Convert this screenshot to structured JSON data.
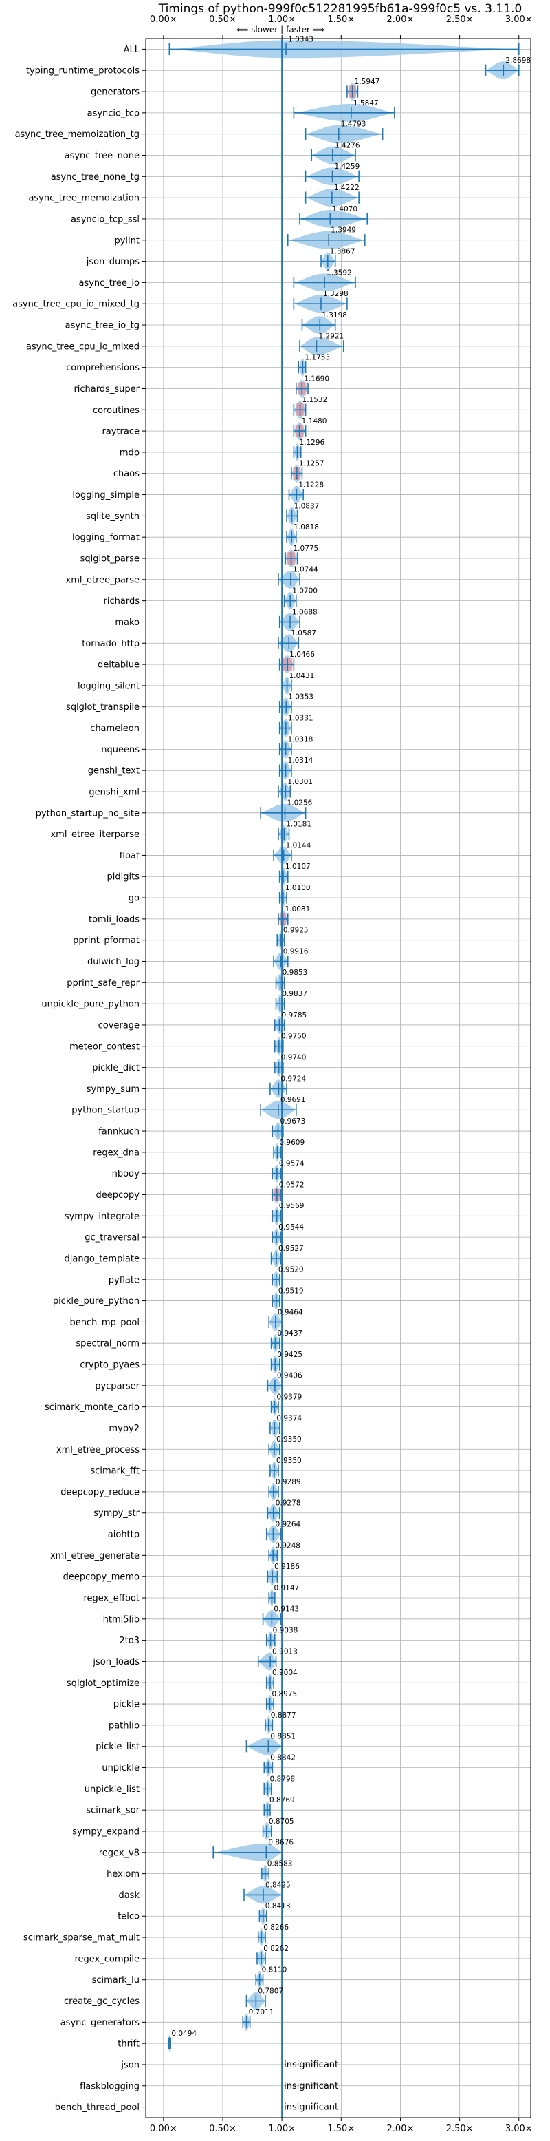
{
  "chart_data": {
    "type": "violin",
    "title": "Timings of python-999f0c512281995fb61a-999f0c5 vs. 3.11.0",
    "direction_labels": {
      "slower": "⟸ slower",
      "separator": "|",
      "faster": "faster ⟹"
    },
    "xlim": [
      -0.15,
      3.1
    ],
    "xticks": [
      0.0,
      0.5,
      1.0,
      1.5,
      2.0,
      2.5,
      3.0
    ],
    "xtick_labels": [
      "0.00×",
      "0.50×",
      "1.00×",
      "1.50×",
      "2.00×",
      "2.50×",
      "3.00×"
    ],
    "reference_line": 1.0,
    "grid": true,
    "insignificant_label": "insignificant",
    "colors": {
      "violin": "#9ec9ea",
      "median": "#1f77b4",
      "reference": "#1f77b4",
      "grid": "#b0b0b0",
      "highlight": "#f08080"
    },
    "benchmarks": [
      {
        "name": "ALL",
        "value": 1.0343,
        "label": "1.0343",
        "min": 0.0494,
        "max": 3.0
      },
      {
        "name": "typing_runtime_protocols",
        "value": 2.8698,
        "label": "2.8698",
        "min": 2.72,
        "max": 3.0
      },
      {
        "name": "generators",
        "value": 1.5947,
        "label": "1.5947",
        "min": 1.55,
        "max": 1.64,
        "highlight": true
      },
      {
        "name": "asyncio_tcp",
        "value": 1.5847,
        "label": "1.5847",
        "min": 1.1,
        "max": 1.95
      },
      {
        "name": "async_tree_memoization_tg",
        "value": 1.4793,
        "label": "1.4793",
        "min": 1.2,
        "max": 1.85
      },
      {
        "name": "async_tree_none",
        "value": 1.4276,
        "label": "1.4276",
        "min": 1.25,
        "max": 1.62
      },
      {
        "name": "async_tree_none_tg",
        "value": 1.4259,
        "label": "1.4259",
        "min": 1.2,
        "max": 1.65
      },
      {
        "name": "async_tree_memoization",
        "value": 1.4222,
        "label": "1.4222",
        "min": 1.2,
        "max": 1.65
      },
      {
        "name": "asyncio_tcp_ssl",
        "value": 1.407,
        "label": "1.4070",
        "min": 1.15,
        "max": 1.72
      },
      {
        "name": "pylint",
        "value": 1.3949,
        "label": "1.3949",
        "min": 1.05,
        "max": 1.7
      },
      {
        "name": "json_dumps",
        "value": 1.3867,
        "label": "1.3867",
        "min": 1.33,
        "max": 1.45
      },
      {
        "name": "async_tree_io",
        "value": 1.3592,
        "label": "1.3592",
        "min": 1.1,
        "max": 1.62
      },
      {
        "name": "async_tree_cpu_io_mixed_tg",
        "value": 1.3298,
        "label": "1.3298",
        "min": 1.1,
        "max": 1.55
      },
      {
        "name": "async_tree_io_tg",
        "value": 1.3198,
        "label": "1.3198",
        "min": 1.17,
        "max": 1.45
      },
      {
        "name": "async_tree_cpu_io_mixed",
        "value": 1.2921,
        "label": "1.2921",
        "min": 1.15,
        "max": 1.52
      },
      {
        "name": "comprehensions",
        "value": 1.1753,
        "label": "1.1753",
        "min": 1.14,
        "max": 1.2
      },
      {
        "name": "richards_super",
        "value": 1.169,
        "label": "1.1690",
        "min": 1.12,
        "max": 1.22,
        "highlight": true
      },
      {
        "name": "coroutines",
        "value": 1.1532,
        "label": "1.1532",
        "min": 1.1,
        "max": 1.2,
        "highlight": true
      },
      {
        "name": "raytrace",
        "value": 1.148,
        "label": "1.1480",
        "min": 1.1,
        "max": 1.2,
        "highlight": true
      },
      {
        "name": "mdp",
        "value": 1.1296,
        "label": "1.1296",
        "min": 1.1,
        "max": 1.16
      },
      {
        "name": "chaos",
        "value": 1.1257,
        "label": "1.1257",
        "min": 1.08,
        "max": 1.17,
        "highlight": true
      },
      {
        "name": "logging_simple",
        "value": 1.1228,
        "label": "1.1228",
        "min": 1.06,
        "max": 1.18
      },
      {
        "name": "sqlite_synth",
        "value": 1.0837,
        "label": "1.0837",
        "min": 1.04,
        "max": 1.13
      },
      {
        "name": "logging_format",
        "value": 1.0818,
        "label": "1.0818",
        "min": 1.04,
        "max": 1.12
      },
      {
        "name": "sqlglot_parse",
        "value": 1.0775,
        "label": "1.0775",
        "min": 1.03,
        "max": 1.13,
        "highlight": true
      },
      {
        "name": "xml_etree_parse",
        "value": 1.0744,
        "label": "1.0744",
        "min": 0.97,
        "max": 1.15
      },
      {
        "name": "richards",
        "value": 1.07,
        "label": "1.0700",
        "min": 1.02,
        "max": 1.12
      },
      {
        "name": "mako",
        "value": 1.0688,
        "label": "1.0688",
        "min": 0.98,
        "max": 1.15
      },
      {
        "name": "tornado_http",
        "value": 1.0587,
        "label": "1.0587",
        "min": 0.97,
        "max": 1.14
      },
      {
        "name": "deltablue",
        "value": 1.0466,
        "label": "1.0466",
        "min": 0.98,
        "max": 1.1,
        "highlight": true
      },
      {
        "name": "logging_silent",
        "value": 1.0431,
        "label": "1.0431",
        "min": 1.0,
        "max": 1.08
      },
      {
        "name": "sqlglot_transpile",
        "value": 1.0353,
        "label": "1.0353",
        "min": 0.98,
        "max": 1.08
      },
      {
        "name": "chameleon",
        "value": 1.0331,
        "label": "1.0331",
        "min": 0.98,
        "max": 1.08
      },
      {
        "name": "nqueens",
        "value": 1.0318,
        "label": "1.0318",
        "min": 0.98,
        "max": 1.08
      },
      {
        "name": "genshi_text",
        "value": 1.0314,
        "label": "1.0314",
        "min": 0.98,
        "max": 1.08
      },
      {
        "name": "genshi_xml",
        "value": 1.0301,
        "label": "1.0301",
        "min": 0.97,
        "max": 1.07
      },
      {
        "name": "python_startup_no_site",
        "value": 1.0256,
        "label": "1.0256",
        "min": 0.82,
        "max": 1.2
      },
      {
        "name": "xml_etree_iterparse",
        "value": 1.0181,
        "label": "1.0181",
        "min": 0.97,
        "max": 1.06
      },
      {
        "name": "float",
        "value": 1.0144,
        "label": "1.0144",
        "min": 0.93,
        "max": 1.08
      },
      {
        "name": "pidigits",
        "value": 1.0107,
        "label": "1.0107",
        "min": 0.98,
        "max": 1.05
      },
      {
        "name": "go",
        "value": 1.01,
        "label": "1.0100",
        "min": 0.98,
        "max": 1.04
      },
      {
        "name": "tomli_loads",
        "value": 1.0081,
        "label": "1.0081",
        "min": 0.97,
        "max": 1.05,
        "highlight": true
      },
      {
        "name": "pprint_pformat",
        "value": 0.9925,
        "label": "0.9925",
        "min": 0.96,
        "max": 1.02
      },
      {
        "name": "dulwich_log",
        "value": 0.9916,
        "label": "0.9916",
        "min": 0.93,
        "max": 1.05
      },
      {
        "name": "pprint_safe_repr",
        "value": 0.9853,
        "label": "0.9853",
        "min": 0.95,
        "max": 1.02
      },
      {
        "name": "unpickle_pure_python",
        "value": 0.9837,
        "label": "0.9837",
        "min": 0.95,
        "max": 1.02
      },
      {
        "name": "coverage",
        "value": 0.9785,
        "label": "0.9785",
        "min": 0.94,
        "max": 1.02
      },
      {
        "name": "meteor_contest",
        "value": 0.975,
        "label": "0.9750",
        "min": 0.94,
        "max": 1.01
      },
      {
        "name": "pickle_dict",
        "value": 0.974,
        "label": "0.9740",
        "min": 0.94,
        "max": 1.01
      },
      {
        "name": "sympy_sum",
        "value": 0.9724,
        "label": "0.9724",
        "min": 0.9,
        "max": 1.04
      },
      {
        "name": "python_startup",
        "value": 0.9691,
        "label": "0.9691",
        "min": 0.82,
        "max": 1.12
      },
      {
        "name": "fannkuch",
        "value": 0.9673,
        "label": "0.9673",
        "min": 0.92,
        "max": 1.01
      },
      {
        "name": "regex_dna",
        "value": 0.9609,
        "label": "0.9609",
        "min": 0.93,
        "max": 0.99
      },
      {
        "name": "nbody",
        "value": 0.9574,
        "label": "0.9574",
        "min": 0.92,
        "max": 0.99
      },
      {
        "name": "deepcopy",
        "value": 0.9572,
        "label": "0.9572",
        "min": 0.92,
        "max": 0.99,
        "highlight": true
      },
      {
        "name": "sympy_integrate",
        "value": 0.9569,
        "label": "0.9569",
        "min": 0.92,
        "max": 0.99
      },
      {
        "name": "gc_traversal",
        "value": 0.9544,
        "label": "0.9544",
        "min": 0.92,
        "max": 0.99
      },
      {
        "name": "django_template",
        "value": 0.9527,
        "label": "0.9527",
        "min": 0.91,
        "max": 0.99
      },
      {
        "name": "pyflate",
        "value": 0.952,
        "label": "0.9520",
        "min": 0.92,
        "max": 0.98
      },
      {
        "name": "pickle_pure_python",
        "value": 0.9519,
        "label": "0.9519",
        "min": 0.92,
        "max": 0.98
      },
      {
        "name": "bench_mp_pool",
        "value": 0.9464,
        "label": "0.9464",
        "min": 0.89,
        "max": 1.0
      },
      {
        "name": "spectral_norm",
        "value": 0.9437,
        "label": "0.9437",
        "min": 0.91,
        "max": 0.98
      },
      {
        "name": "crypto_pyaes",
        "value": 0.9425,
        "label": "0.9425",
        "min": 0.91,
        "max": 0.98
      },
      {
        "name": "pycparser",
        "value": 0.9406,
        "label": "0.9406",
        "min": 0.88,
        "max": 1.0
      },
      {
        "name": "scimark_monte_carlo",
        "value": 0.9379,
        "label": "0.9379",
        "min": 0.91,
        "max": 0.97
      },
      {
        "name": "mypy2",
        "value": 0.9374,
        "label": "0.9374",
        "min": 0.9,
        "max": 0.98
      },
      {
        "name": "xml_etree_process",
        "value": 0.935,
        "label": "0.9350",
        "min": 0.89,
        "max": 0.98
      },
      {
        "name": "scimark_fft",
        "value": 0.935,
        "label": "0.9350",
        "min": 0.9,
        "max": 0.97
      },
      {
        "name": "deepcopy_reduce",
        "value": 0.9289,
        "label": "0.9289",
        "min": 0.89,
        "max": 0.97
      },
      {
        "name": "sympy_str",
        "value": 0.9278,
        "label": "0.9278",
        "min": 0.88,
        "max": 0.98
      },
      {
        "name": "aiohttp",
        "value": 0.9264,
        "label": "0.9264",
        "min": 0.87,
        "max": 0.99
      },
      {
        "name": "xml_etree_generate",
        "value": 0.9248,
        "label": "0.9248",
        "min": 0.89,
        "max": 0.96
      },
      {
        "name": "deepcopy_memo",
        "value": 0.9186,
        "label": "0.9186",
        "min": 0.88,
        "max": 0.96
      },
      {
        "name": "regex_effbot",
        "value": 0.9147,
        "label": "0.9147",
        "min": 0.89,
        "max": 0.94
      },
      {
        "name": "html5lib",
        "value": 0.9143,
        "label": "0.9143",
        "min": 0.84,
        "max": 0.99
      },
      {
        "name": "2to3",
        "value": 0.9038,
        "label": "0.9038",
        "min": 0.87,
        "max": 0.94
      },
      {
        "name": "json_loads",
        "value": 0.9013,
        "label": "0.9013",
        "min": 0.8,
        "max": 0.95
      },
      {
        "name": "sqlglot_optimize",
        "value": 0.9004,
        "label": "0.9004",
        "min": 0.87,
        "max": 0.93
      },
      {
        "name": "pickle",
        "value": 0.8975,
        "label": "0.8975",
        "min": 0.87,
        "max": 0.93
      },
      {
        "name": "pathlib",
        "value": 0.8877,
        "label": "0.8877",
        "min": 0.86,
        "max": 0.92
      },
      {
        "name": "pickle_list",
        "value": 0.8851,
        "label": "0.8851",
        "min": 0.7,
        "max": 1.0
      },
      {
        "name": "unpickle",
        "value": 0.8842,
        "label": "0.8842",
        "min": 0.85,
        "max": 0.92
      },
      {
        "name": "unpickle_list",
        "value": 0.8798,
        "label": "0.8798",
        "min": 0.85,
        "max": 0.91
      },
      {
        "name": "scimark_sor",
        "value": 0.8769,
        "label": "0.8769",
        "min": 0.85,
        "max": 0.9
      },
      {
        "name": "sympy_expand",
        "value": 0.8705,
        "label": "0.8705",
        "min": 0.84,
        "max": 0.91
      },
      {
        "name": "regex_v8",
        "value": 0.8676,
        "label": "0.8676",
        "min": 0.42,
        "max": 1.0
      },
      {
        "name": "hexiom",
        "value": 0.8583,
        "label": "0.8583",
        "min": 0.83,
        "max": 0.89
      },
      {
        "name": "dask",
        "value": 0.8425,
        "label": "0.8425",
        "min": 0.68,
        "max": 1.0
      },
      {
        "name": "telco",
        "value": 0.8413,
        "label": "0.8413",
        "min": 0.81,
        "max": 0.87
      },
      {
        "name": "scimark_sparse_mat_mult",
        "value": 0.8266,
        "label": "0.8266",
        "min": 0.8,
        "max": 0.86
      },
      {
        "name": "regex_compile",
        "value": 0.8262,
        "label": "0.8262",
        "min": 0.79,
        "max": 0.86
      },
      {
        "name": "scimark_lu",
        "value": 0.811,
        "label": "0.8110",
        "min": 0.78,
        "max": 0.84
      },
      {
        "name": "create_gc_cycles",
        "value": 0.7807,
        "label": "0.7807",
        "min": 0.7,
        "max": 0.86
      },
      {
        "name": "async_generators",
        "value": 0.7011,
        "label": "0.7011",
        "min": 0.67,
        "max": 0.73
      },
      {
        "name": "thrift",
        "value": 0.0494,
        "label": "0.0494",
        "min": 0.04,
        "max": 0.06
      },
      {
        "name": "json",
        "insignificant": true
      },
      {
        "name": "flaskblogging",
        "insignificant": true
      },
      {
        "name": "bench_thread_pool",
        "insignificant": true
      }
    ]
  }
}
